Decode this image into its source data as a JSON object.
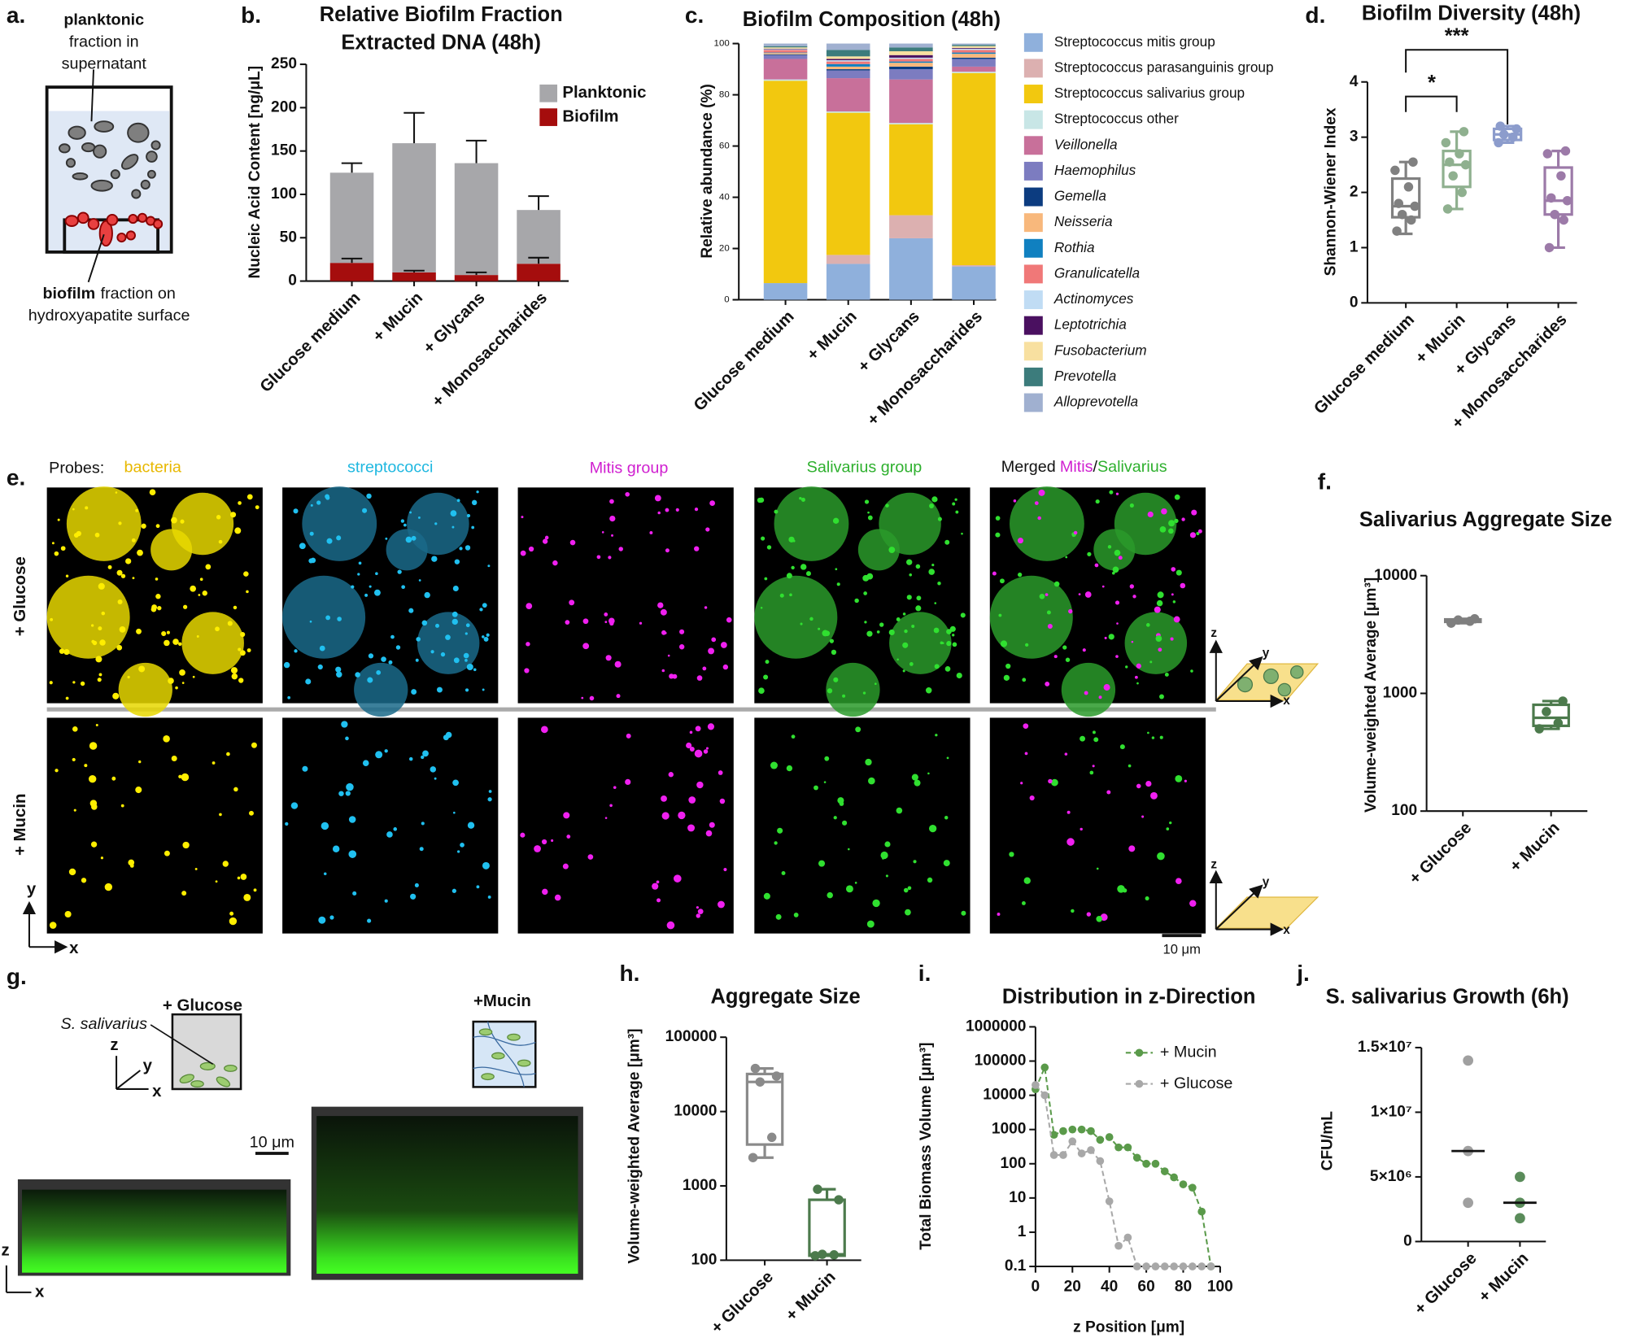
{
  "figure": {
    "panel_labels": [
      "a.",
      "b.",
      "c.",
      "d.",
      "e.",
      "f.",
      "g.",
      "h.",
      "i.",
      "j."
    ],
    "panel_a": {
      "top": [
        "planktonic",
        "fraction in",
        "supernatant"
      ],
      "bottom": [
        "biofilm",
        "fraction on",
        "hydroxyapatite surface"
      ]
    },
    "panel_e": {
      "probes_label": "Probes:",
      "probes": [
        "bacteria",
        "streptococci",
        "Mitis group",
        "Salivarius group"
      ],
      "merged": [
        "Merged",
        "Mitis",
        "/",
        "Salivarius"
      ],
      "rows": [
        "+ Glucose",
        "+ Mucin"
      ],
      "scale_bar": "10 μm"
    },
    "axis_letters": {
      "x": "x",
      "y": "y",
      "z": "z"
    },
    "panel_g": {
      "treatments": [
        "+ Glucose",
        "+Mucin"
      ],
      "organism": "S. salivarius",
      "scale_bar": "10 μm"
    }
  },
  "chart_data": [
    {
      "type": "bar",
      "stacked": true,
      "title": [
        "Relative Biofilm Fraction",
        "Extracted DNA (48h)"
      ],
      "ylabel": "Nucleic Acid Content [ng/μL]",
      "categories": [
        "Glucose medium",
        "+ Mucin",
        "+ Glycans",
        "+ Monosaccharides"
      ],
      "series": [
        {
          "name": "Biofilm",
          "color": "#a50d0d",
          "values": [
            21,
            10,
            7,
            20
          ],
          "errors": [
            5,
            2,
            3,
            7
          ]
        },
        {
          "name": "Planktonic",
          "color": "#a7a7aa",
          "values": [
            104,
            149,
            129,
            62
          ],
          "errors": [
            11,
            35,
            26,
            16
          ]
        }
      ],
      "ylim": [
        0,
        250
      ],
      "yticks": [
        0,
        50,
        100,
        150,
        200,
        250
      ]
    },
    {
      "type": "bar",
      "stacked": true,
      "title": "Biofilm Composition (48h)",
      "ylabel": "Relative abundance (%)",
      "categories": [
        "Glucose medium",
        "+ Mucin",
        "+ Glycans",
        "+ Monosaccharides"
      ],
      "series": [
        {
          "name": "Streptococcus mitis group",
          "color": "#8fb0dc",
          "values": [
            6.5,
            14,
            24,
            13
          ]
        },
        {
          "name": "Streptococcus parasanguinis group",
          "color": "#dcb0b0",
          "values": [
            0,
            3.5,
            9,
            0.5
          ]
        },
        {
          "name": "Streptococcus salivarius group",
          "color": "#f2c80f",
          "values": [
            79,
            55.5,
            35.5,
            75
          ]
        },
        {
          "name": "Streptococcus other",
          "color": "#c8e6e6",
          "values": [
            0.5,
            0.5,
            0.5,
            0.5
          ]
        },
        {
          "name": "Veillonella",
          "italic": true,
          "color": "#c8709a",
          "values": [
            8,
            13,
            17,
            2
          ]
        },
        {
          "name": "Haemophilus",
          "italic": true,
          "color": "#7c7cc0",
          "values": [
            1.5,
            3,
            4,
            3
          ]
        },
        {
          "name": "Gemella",
          "italic": true,
          "color": "#0c3c80",
          "values": [
            0.3,
            0.5,
            1,
            0.5
          ]
        },
        {
          "name": "Neisseria",
          "italic": true,
          "color": "#f8b87c",
          "values": [
            0.5,
            1,
            1.5,
            1.5
          ]
        },
        {
          "name": "Rothia",
          "italic": true,
          "color": "#1080c0",
          "values": [
            0.2,
            1,
            0.5,
            0.5
          ]
        },
        {
          "name": "Granulicatella",
          "italic": true,
          "color": "#f07878",
          "values": [
            1,
            1,
            1,
            1
          ]
        },
        {
          "name": "Actinomyces",
          "italic": true,
          "color": "#c0dcf4",
          "values": [
            0.3,
            0.5,
            0.5,
            0.5
          ]
        },
        {
          "name": "Leptotrichia",
          "italic": true,
          "color": "#4a1060",
          "values": [
            0.2,
            0.5,
            1,
            0.3
          ]
        },
        {
          "name": "Fusobacterium",
          "italic": true,
          "color": "#f8e0a0",
          "values": [
            0.5,
            1,
            1.5,
            0.7
          ]
        },
        {
          "name": "Prevotella",
          "italic": true,
          "color": "#3c7c7c",
          "values": [
            0.5,
            2.5,
            1.5,
            0.5
          ]
        },
        {
          "name": "Alloprevotella",
          "italic": true,
          "color": "#a0b0d0",
          "values": [
            1,
            2.5,
            1.5,
            0.5
          ]
        }
      ],
      "ylim": [
        0,
        100
      ],
      "yticks": [
        0,
        20,
        40,
        60,
        80,
        100
      ]
    },
    {
      "type": "box",
      "title": "Biofilm Diversity (48h)",
      "ylabel": "Shannon-Wiener Index",
      "categories": [
        "Glucose medium",
        "+ Mucin",
        "+ Glycans",
        "+ Monosaccharides"
      ],
      "colors": [
        "#808080",
        "#8fb08f",
        "#8c9ccc",
        "#9c7aa8"
      ],
      "stats": [
        {
          "min": 1.25,
          "q1": 1.55,
          "median": 1.75,
          "q3": 2.25,
          "max": 2.55
        },
        {
          "min": 1.7,
          "q1": 2.1,
          "median": 2.5,
          "q3": 2.75,
          "max": 3.1
        },
        {
          "min": 2.9,
          "q1": 2.95,
          "median": 3.05,
          "q3": 3.15,
          "max": 3.2
        },
        {
          "min": 1.0,
          "q1": 1.6,
          "median": 1.85,
          "q3": 2.45,
          "max": 2.75
        }
      ],
      "points": [
        [
          1.3,
          1.5,
          1.6,
          1.75,
          1.8,
          2.1,
          2.4,
          2.55
        ],
        [
          1.7,
          2.0,
          2.3,
          2.5,
          2.55,
          2.7,
          2.9,
          3.1
        ],
        [
          2.9,
          3.0,
          3.05,
          3.15,
          3.2
        ],
        [
          1.0,
          1.5,
          1.6,
          1.85,
          1.9,
          2.3,
          2.7,
          2.75
        ]
      ],
      "annotations": [
        "*",
        "***"
      ],
      "ylim": [
        0,
        4
      ],
      "yticks": [
        0,
        1,
        2,
        3,
        4
      ]
    },
    {
      "type": "box",
      "title": "Salivarius Aggregate Size",
      "ylabel": "Volume-weighted Average [μm³]",
      "log_y": true,
      "categories": [
        "+ Glucose",
        "+ Mucin"
      ],
      "colors": [
        "#7f7f7f",
        "#4c7a4c"
      ],
      "stats": [
        {
          "min": 3950,
          "q1": 4050,
          "median": 4150,
          "q3": 4250,
          "max": 4300
        },
        {
          "min": 500,
          "q1": 530,
          "median": 620,
          "q3": 800,
          "max": 860
        }
      ],
      "points": [
        [
          3950,
          4100,
          4200,
          4300
        ],
        [
          500,
          560,
          700,
          860
        ]
      ],
      "ylim": [
        100,
        10000
      ],
      "yticks": [
        100,
        1000,
        10000
      ]
    },
    {
      "type": "box",
      "title": "Aggregate Size",
      "ylabel": "Volume-weighted Average [μm³]",
      "log_y": true,
      "categories": [
        "+ Glucose",
        "+ Mucin"
      ],
      "colors": [
        "#8a8a8a",
        "#4c7a4c"
      ],
      "stats": [
        {
          "min": 2400,
          "q1": 3600,
          "median": 25000,
          "q3": 32000,
          "max": 38000
        },
        {
          "min": 115,
          "q1": 115,
          "median": 120,
          "q3": 650,
          "max": 900
        }
      ],
      "points": [
        [
          2400,
          4500,
          25000,
          30000,
          38000
        ],
        [
          115,
          118,
          120,
          650,
          900
        ]
      ],
      "ylim": [
        100,
        100000
      ],
      "yticks": [
        100,
        1000,
        10000,
        100000
      ]
    },
    {
      "type": "line",
      "title": "Distribution in z-Direction",
      "xlabel": "z Position [μm]",
      "ylabel": "Total Biomass Volume [μm³]",
      "log_y": true,
      "x": [
        0,
        5,
        10,
        15,
        20,
        25,
        30,
        35,
        40,
        45,
        50,
        55,
        60,
        65,
        70,
        75,
        80,
        85,
        90,
        95
      ],
      "series": [
        {
          "name": "+ Mucin",
          "color": "#5a9a4a",
          "values": [
            15000,
            65000,
            700,
            900,
            1000,
            1000,
            900,
            500,
            600,
            300,
            300,
            150,
            100,
            100,
            60,
            40,
            25,
            20,
            4,
            0.1
          ]
        },
        {
          "name": "+ Glucose",
          "color": "#a8a8a8",
          "values": [
            20000,
            10000,
            180,
            180,
            450,
            200,
            250,
            120,
            8,
            0.4,
            0.7,
            0.1,
            0.1,
            0.1,
            0.1,
            0.1,
            0.1,
            0.1,
            0.1,
            0.1
          ]
        }
      ],
      "xlim": [
        0,
        100
      ],
      "xticks": [
        0,
        20,
        40,
        60,
        80,
        100
      ],
      "ylim": [
        0.1,
        1000000
      ],
      "yticks": [
        0.1,
        1,
        10,
        100,
        1000,
        10000,
        100000,
        1000000
      ]
    },
    {
      "type": "scatter",
      "title": "S. salivarius Growth (6h)",
      "ylabel": "CFU/mL",
      "categories": [
        "+ Glucose",
        "+ Mucin"
      ],
      "colors": [
        "#a0a0a0",
        "#5a8c5a"
      ],
      "points": [
        [
          3000000,
          7000000,
          14000000
        ],
        [
          1800000,
          3000000,
          5000000
        ]
      ],
      "medians": [
        7000000,
        3000000
      ],
      "ylim": [
        0,
        15000000
      ],
      "yticks": [
        0,
        {
          "value": 5000000,
          "label": "5×10⁶"
        },
        {
          "value": 10000000,
          "label": "1×10⁷"
        },
        {
          "value": 15000000,
          "label": "1.5×10⁷"
        }
      ]
    }
  ]
}
